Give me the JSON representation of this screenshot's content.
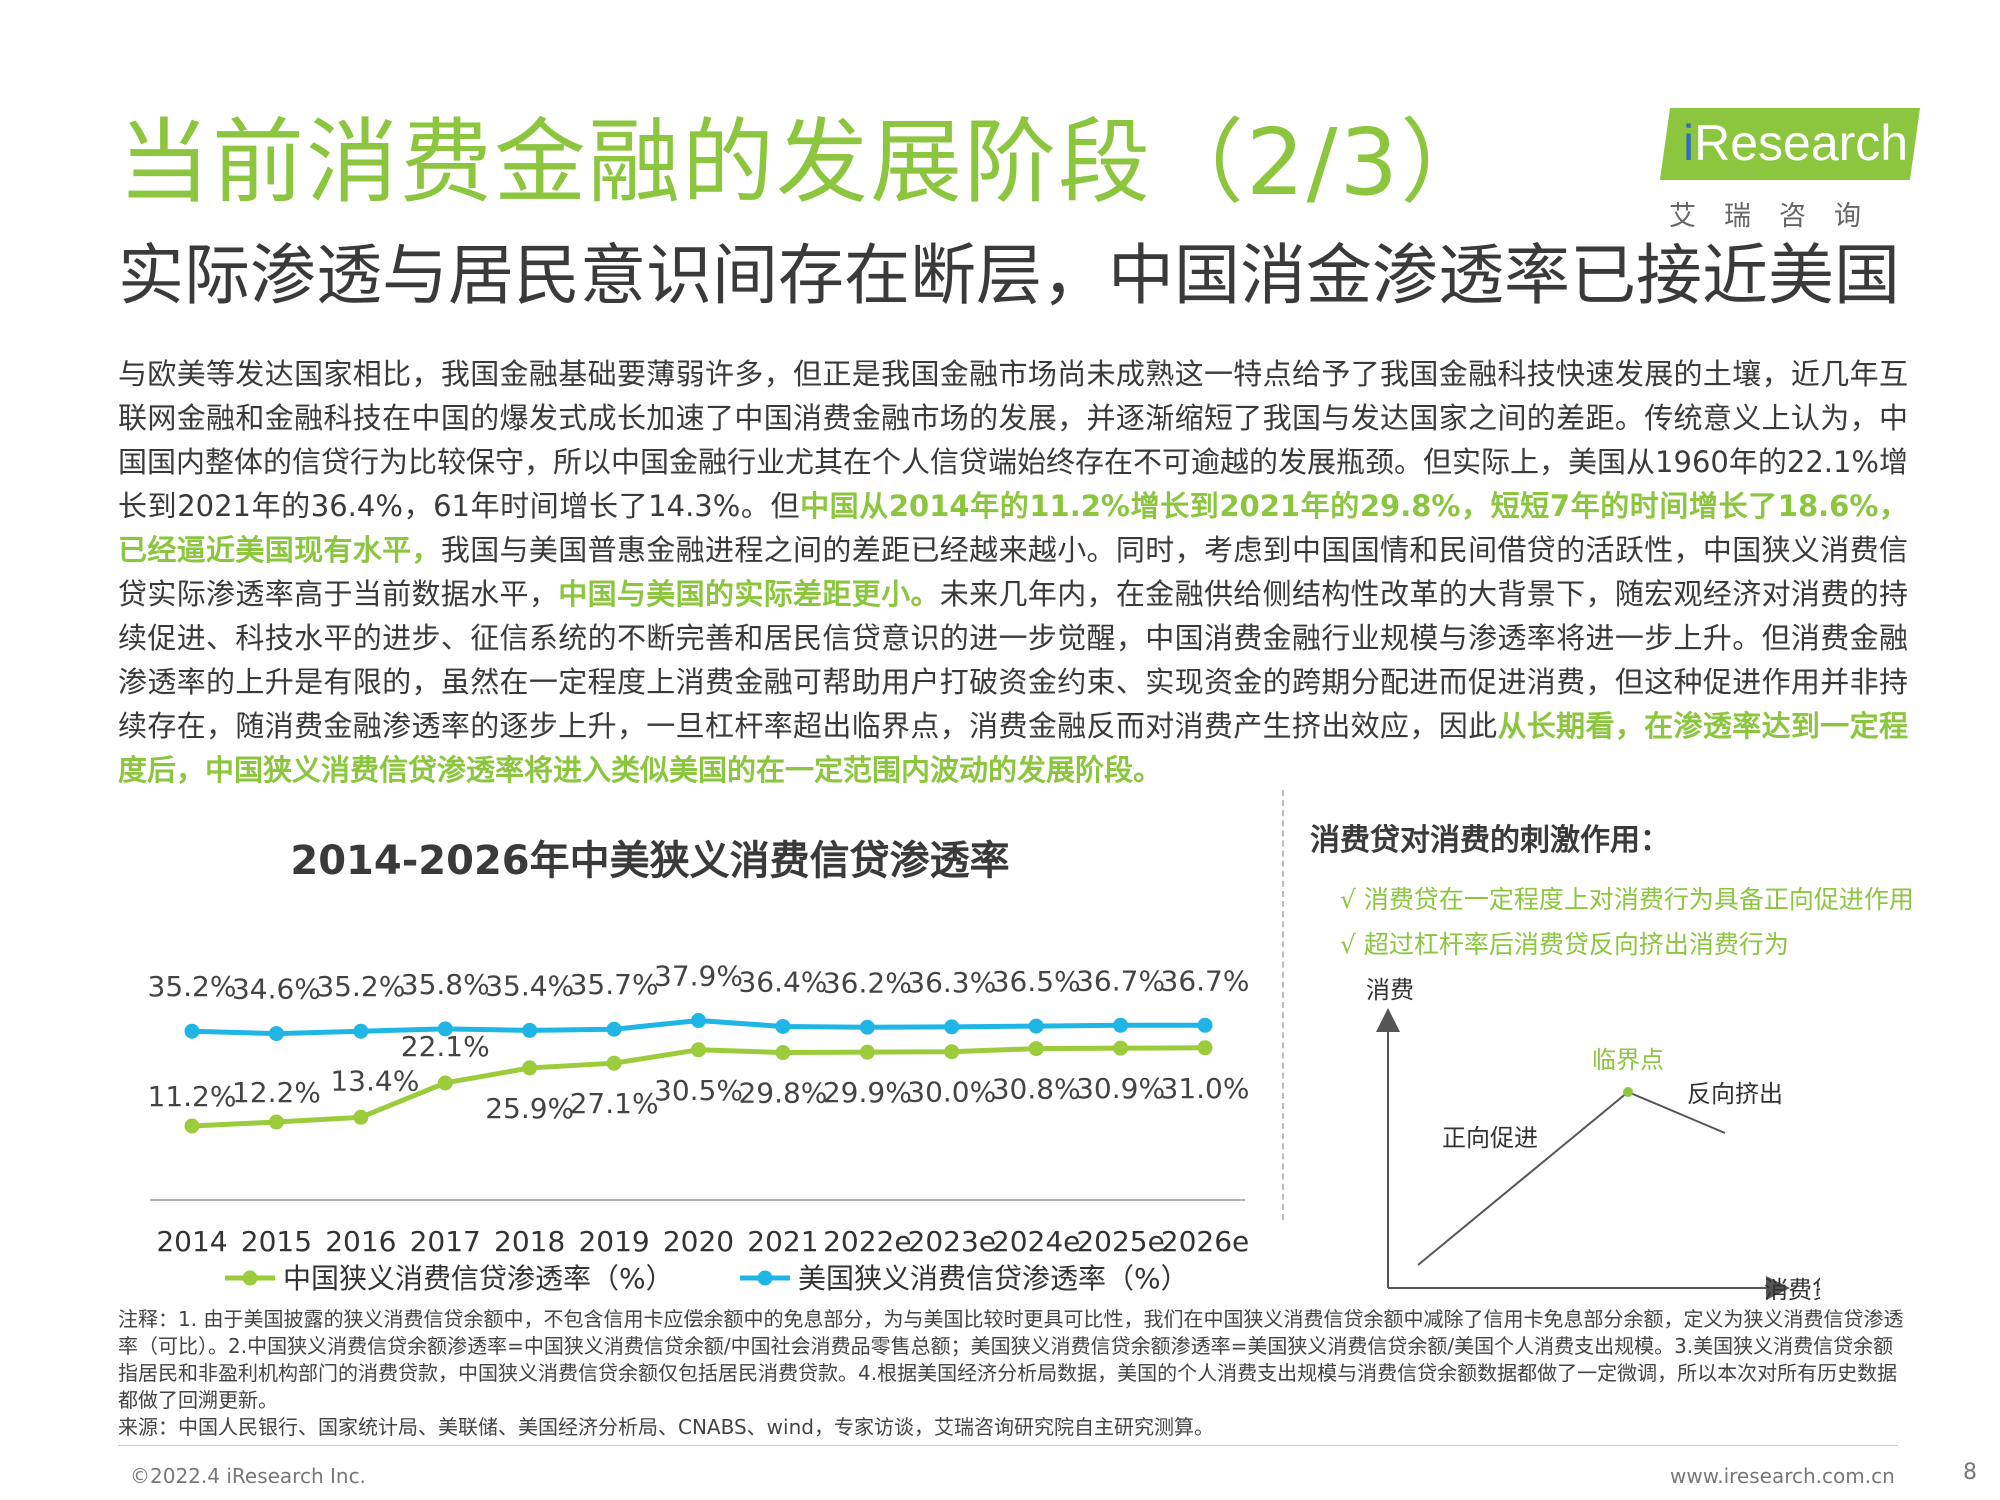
{
  "header": {
    "title": "当前消费金融的发展阶段（2/3）",
    "subtitle": "实际渗透与居民意识间存在断层，中国消金渗透率已接近美国"
  },
  "logo": {
    "text_i": "i",
    "text_rest": "Research",
    "cn": "艾瑞咨询"
  },
  "body": {
    "p1": "与欧美等发达国家相比，我国金融基础要薄弱许多，但正是我国金融市场尚未成熟这一特点给予了我国金融科技快速发展的土壤，近几年互联网金融和金融科技在中国的爆发式成长加速了中国消费金融市场的发展，并逐渐缩短了我国与发达国家之间的差距。传统意义上认为，中国国内整体的信贷行为比较保守，所以中国金融行业尤其在个人信贷端始终存在不可逾越的发展瓶颈。但实际上，美国从1960年的22.1%增长到2021年的36.4%，61年时间增长了14.3%。但",
    "h1": "中国从2014年的11.2%增长到2021年的29.8%，短短7年的时间增长了18.6%，已经逼近美国现有水平，",
    "p2": "我国与美国普惠金融进程之间的差距已经越来越小。同时，考虑到中国国情和民间借贷的活跃性，中国狭义消费信贷实际渗透率高于当前数据水平，",
    "h2": "中国与美国的实际差距更小。",
    "p3": "未来几年内，在金融供给侧结构性改革的大背景下，随宏观经济对消费的持续促进、科技水平的进步、征信系统的不断完善和居民信贷意识的进一步觉醒，中国消费金融行业规模与渗透率将进一步上升。但消费金融渗透率的上升是有限的，虽然在一定程度上消费金融可帮助用户打破资金约束、实现资金的跨期分配进而促进消费，但这种促进作用并非持续存在，随消费金融渗透率的逐步上升，一旦杠杆率超出临界点，消费金融反而对消费产生挤出效应，因此",
    "h3": "从长期看，在渗透率达到一定程度后，中国狭义消费信贷渗透率将进入类似美国的在一定范围内波动的发展阶段。"
  },
  "chart_data": {
    "type": "line",
    "title": "2014-2026年中美狭义消费信贷渗透率",
    "categories": [
      "2014",
      "2015",
      "2016",
      "2017",
      "2018",
      "2019",
      "2020",
      "2021",
      "2022e",
      "2023e",
      "2024e",
      "2025e",
      "2026e"
    ],
    "series": [
      {
        "name": "美国狭义消费信贷渗透率（%）",
        "color": "#1fb6e6",
        "values": [
          35.2,
          34.6,
          35.2,
          35.8,
          35.4,
          35.7,
          37.9,
          36.4,
          36.2,
          36.3,
          36.5,
          36.7,
          36.7
        ],
        "labels": [
          "35.2%",
          "34.6%",
          "35.2%",
          "35.8%",
          "35.4%",
          "35.7%",
          "37.9%",
          "36.4%",
          "36.2%",
          "36.3%",
          "36.5%",
          "36.7%",
          "36.7%"
        ]
      },
      {
        "name": "中国狭义消费信贷渗透率（%）",
        "color": "#9ccb3b",
        "values": [
          11.2,
          12.2,
          13.4,
          22.1,
          25.9,
          27.1,
          30.5,
          29.8,
          29.9,
          30.0,
          30.8,
          30.9,
          31.0
        ],
        "labels": [
          "11.2%",
          "12.2%",
          "13.4%",
          "22.1%",
          "25.9%",
          "27.1%",
          "30.5%",
          "29.8%",
          "29.9%",
          "30.0%",
          "30.8%",
          "30.9%",
          "31.0%"
        ]
      }
    ],
    "legend_order": [
      1,
      0
    ],
    "legend": "bottom",
    "grid": false
  },
  "side": {
    "title": "消费贷对消费的刺激作用：",
    "checks": [
      "√ 消费贷在一定程度上对消费行为具备正向促进作用",
      "√ 超过杠杆率后消费贷反向挤出消费行为"
    ],
    "y_axis": "消费",
    "x_axis": "消费贷",
    "peak_label": "临界点",
    "up_label": "正向促进",
    "down_label": "反向挤出"
  },
  "notes": {
    "note": "注释：1. 由于美国披露的狭义消费信贷余额中，不包含信用卡应偿余额中的免息部分，为与美国比较时更具可比性，我们在中国狭义消费信贷余额中减除了信用卡免息部分余额，定义为狭义消费信贷渗透率（可比）。2.中国狭义消费信贷余额渗透率=中国狭义消费信贷余额/中国社会消费品零售总额；美国狭义消费信贷余额渗透率=美国狭义消费信贷余额/美国个人消费支出规模。3.美国狭义消费信贷余额指居民和非盈利机构部门的消费贷款，中国狭义消费信贷余额仅包括居民消费贷款。4.根据美国经济分析局数据，美国的个人消费支出规模与消费信贷余额数据都做了一定微调，所以本次对所有历史数据都做了回溯更新。",
    "source": "来源：中国人民银行、国家统计局、美联储、美国经济分析局、CNABS、wind，专家访谈，艾瑞咨询研究院自主研究测算。"
  },
  "footer": {
    "copyright": "©2022.4 iResearch Inc.",
    "website": "www.iresearch.com.cn",
    "page": "8"
  },
  "colors": {
    "accent_green": "#8cc63f",
    "cn_line": "#9ccb3b",
    "us_line": "#1fb6e6"
  }
}
